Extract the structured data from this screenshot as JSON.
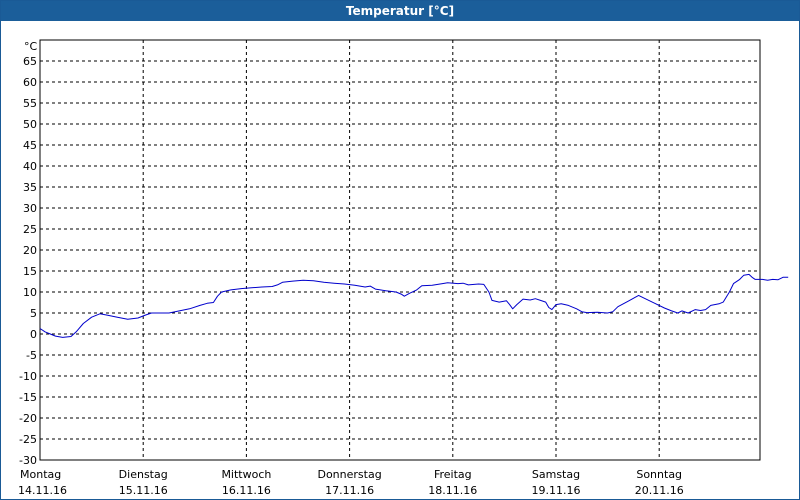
{
  "chart_data": {
    "type": "line",
    "title": "Temperatur [°C]",
    "ylabel": "°C",
    "ylim": [
      -30,
      70
    ],
    "yticks": [
      65,
      60,
      55,
      50,
      45,
      40,
      35,
      30,
      25,
      20,
      15,
      10,
      5,
      0,
      -5,
      -10,
      -15,
      -20,
      -25,
      -30
    ],
    "grid": true,
    "x_range": [
      0,
      7
    ],
    "days": [
      {
        "name": "Montag",
        "date": "14.11.16"
      },
      {
        "name": "Dienstag",
        "date": "15.11.16"
      },
      {
        "name": "Mittwoch",
        "date": "16.11.16"
      },
      {
        "name": "Donnerstag",
        "date": "17.11.16"
      },
      {
        "name": "Freitag",
        "date": "18.11.16"
      },
      {
        "name": "Samstag",
        "date": "19.11.16"
      },
      {
        "name": "Sonntag",
        "date": "20.11.16"
      }
    ],
    "series": [
      {
        "color": "#0000cc",
        "points": [
          [
            0.0,
            1.3
          ],
          [
            0.05,
            0.5
          ],
          [
            0.1,
            0.0
          ],
          [
            0.15,
            -0.5
          ],
          [
            0.22,
            -0.8
          ],
          [
            0.3,
            -0.6
          ],
          [
            0.35,
            0.5
          ],
          [
            0.42,
            2.5
          ],
          [
            0.5,
            4.0
          ],
          [
            0.58,
            4.8
          ],
          [
            0.65,
            4.5
          ],
          [
            0.75,
            4.0
          ],
          [
            0.85,
            3.5
          ],
          [
            0.95,
            3.8
          ],
          [
            1.02,
            4.5
          ],
          [
            1.08,
            5.0
          ],
          [
            1.15,
            5.0
          ],
          [
            1.25,
            5.0
          ],
          [
            1.35,
            5.5
          ],
          [
            1.45,
            6.0
          ],
          [
            1.55,
            6.8
          ],
          [
            1.62,
            7.3
          ],
          [
            1.68,
            7.5
          ],
          [
            1.72,
            9.0
          ],
          [
            1.76,
            10.0
          ],
          [
            1.85,
            10.5
          ],
          [
            1.95,
            10.8
          ],
          [
            2.05,
            11.0
          ],
          [
            2.15,
            11.2
          ],
          [
            2.25,
            11.3
          ],
          [
            2.3,
            11.7
          ],
          [
            2.35,
            12.3
          ],
          [
            2.45,
            12.6
          ],
          [
            2.55,
            12.8
          ],
          [
            2.65,
            12.7
          ],
          [
            2.75,
            12.3
          ],
          [
            2.85,
            12.1
          ],
          [
            2.95,
            11.9
          ],
          [
            3.05,
            11.6
          ],
          [
            3.15,
            11.2
          ],
          [
            3.2,
            11.4
          ],
          [
            3.25,
            10.7
          ],
          [
            3.35,
            10.3
          ],
          [
            3.45,
            10.0
          ],
          [
            3.5,
            9.5
          ],
          [
            3.53,
            9.0
          ],
          [
            3.58,
            9.7
          ],
          [
            3.65,
            10.5
          ],
          [
            3.7,
            11.5
          ],
          [
            3.8,
            11.6
          ],
          [
            3.9,
            12.0
          ],
          [
            3.95,
            12.2
          ],
          [
            4.05,
            12.0
          ],
          [
            4.1,
            12.1
          ],
          [
            4.15,
            11.7
          ],
          [
            4.25,
            11.9
          ],
          [
            4.3,
            11.8
          ],
          [
            4.35,
            10.0
          ],
          [
            4.38,
            8.0
          ],
          [
            4.45,
            7.6
          ],
          [
            4.52,
            7.9
          ],
          [
            4.55,
            7.0
          ],
          [
            4.58,
            6.0
          ],
          [
            4.62,
            7.0
          ],
          [
            4.68,
            8.3
          ],
          [
            4.75,
            8.1
          ],
          [
            4.8,
            8.4
          ],
          [
            4.85,
            8.0
          ],
          [
            4.9,
            7.6
          ],
          [
            4.93,
            6.3
          ],
          [
            4.96,
            5.8
          ],
          [
            5.0,
            7.0
          ],
          [
            5.05,
            7.2
          ],
          [
            5.12,
            6.8
          ],
          [
            5.2,
            6.0
          ],
          [
            5.25,
            5.3
          ],
          [
            5.3,
            5.1
          ],
          [
            5.4,
            5.2
          ],
          [
            5.45,
            5.1
          ],
          [
            5.5,
            5.0
          ],
          [
            5.55,
            5.3
          ],
          [
            5.6,
            6.5
          ],
          [
            5.7,
            7.8
          ],
          [
            5.75,
            8.5
          ],
          [
            5.8,
            9.2
          ],
          [
            5.85,
            8.6
          ],
          [
            5.95,
            7.4
          ],
          [
            6.05,
            6.2
          ],
          [
            6.12,
            5.5
          ],
          [
            6.18,
            5.0
          ],
          [
            6.22,
            5.5
          ],
          [
            6.28,
            5.0
          ],
          [
            6.35,
            5.8
          ],
          [
            6.4,
            5.6
          ],
          [
            6.45,
            5.8
          ],
          [
            6.5,
            6.8
          ],
          [
            6.58,
            7.2
          ],
          [
            6.62,
            7.6
          ],
          [
            6.68,
            10.0
          ],
          [
            6.72,
            12.0
          ],
          [
            6.78,
            13.0
          ],
          [
            6.82,
            14.0
          ],
          [
            6.87,
            14.2
          ],
          [
            6.9,
            13.5
          ],
          [
            6.93,
            13.0
          ],
          [
            7.0,
            13.0
          ],
          [
            7.05,
            12.8
          ],
          [
            7.1,
            13.0
          ],
          [
            7.15,
            12.9
          ],
          [
            7.2,
            13.5
          ],
          [
            7.25,
            13.5
          ]
        ]
      }
    ]
  }
}
